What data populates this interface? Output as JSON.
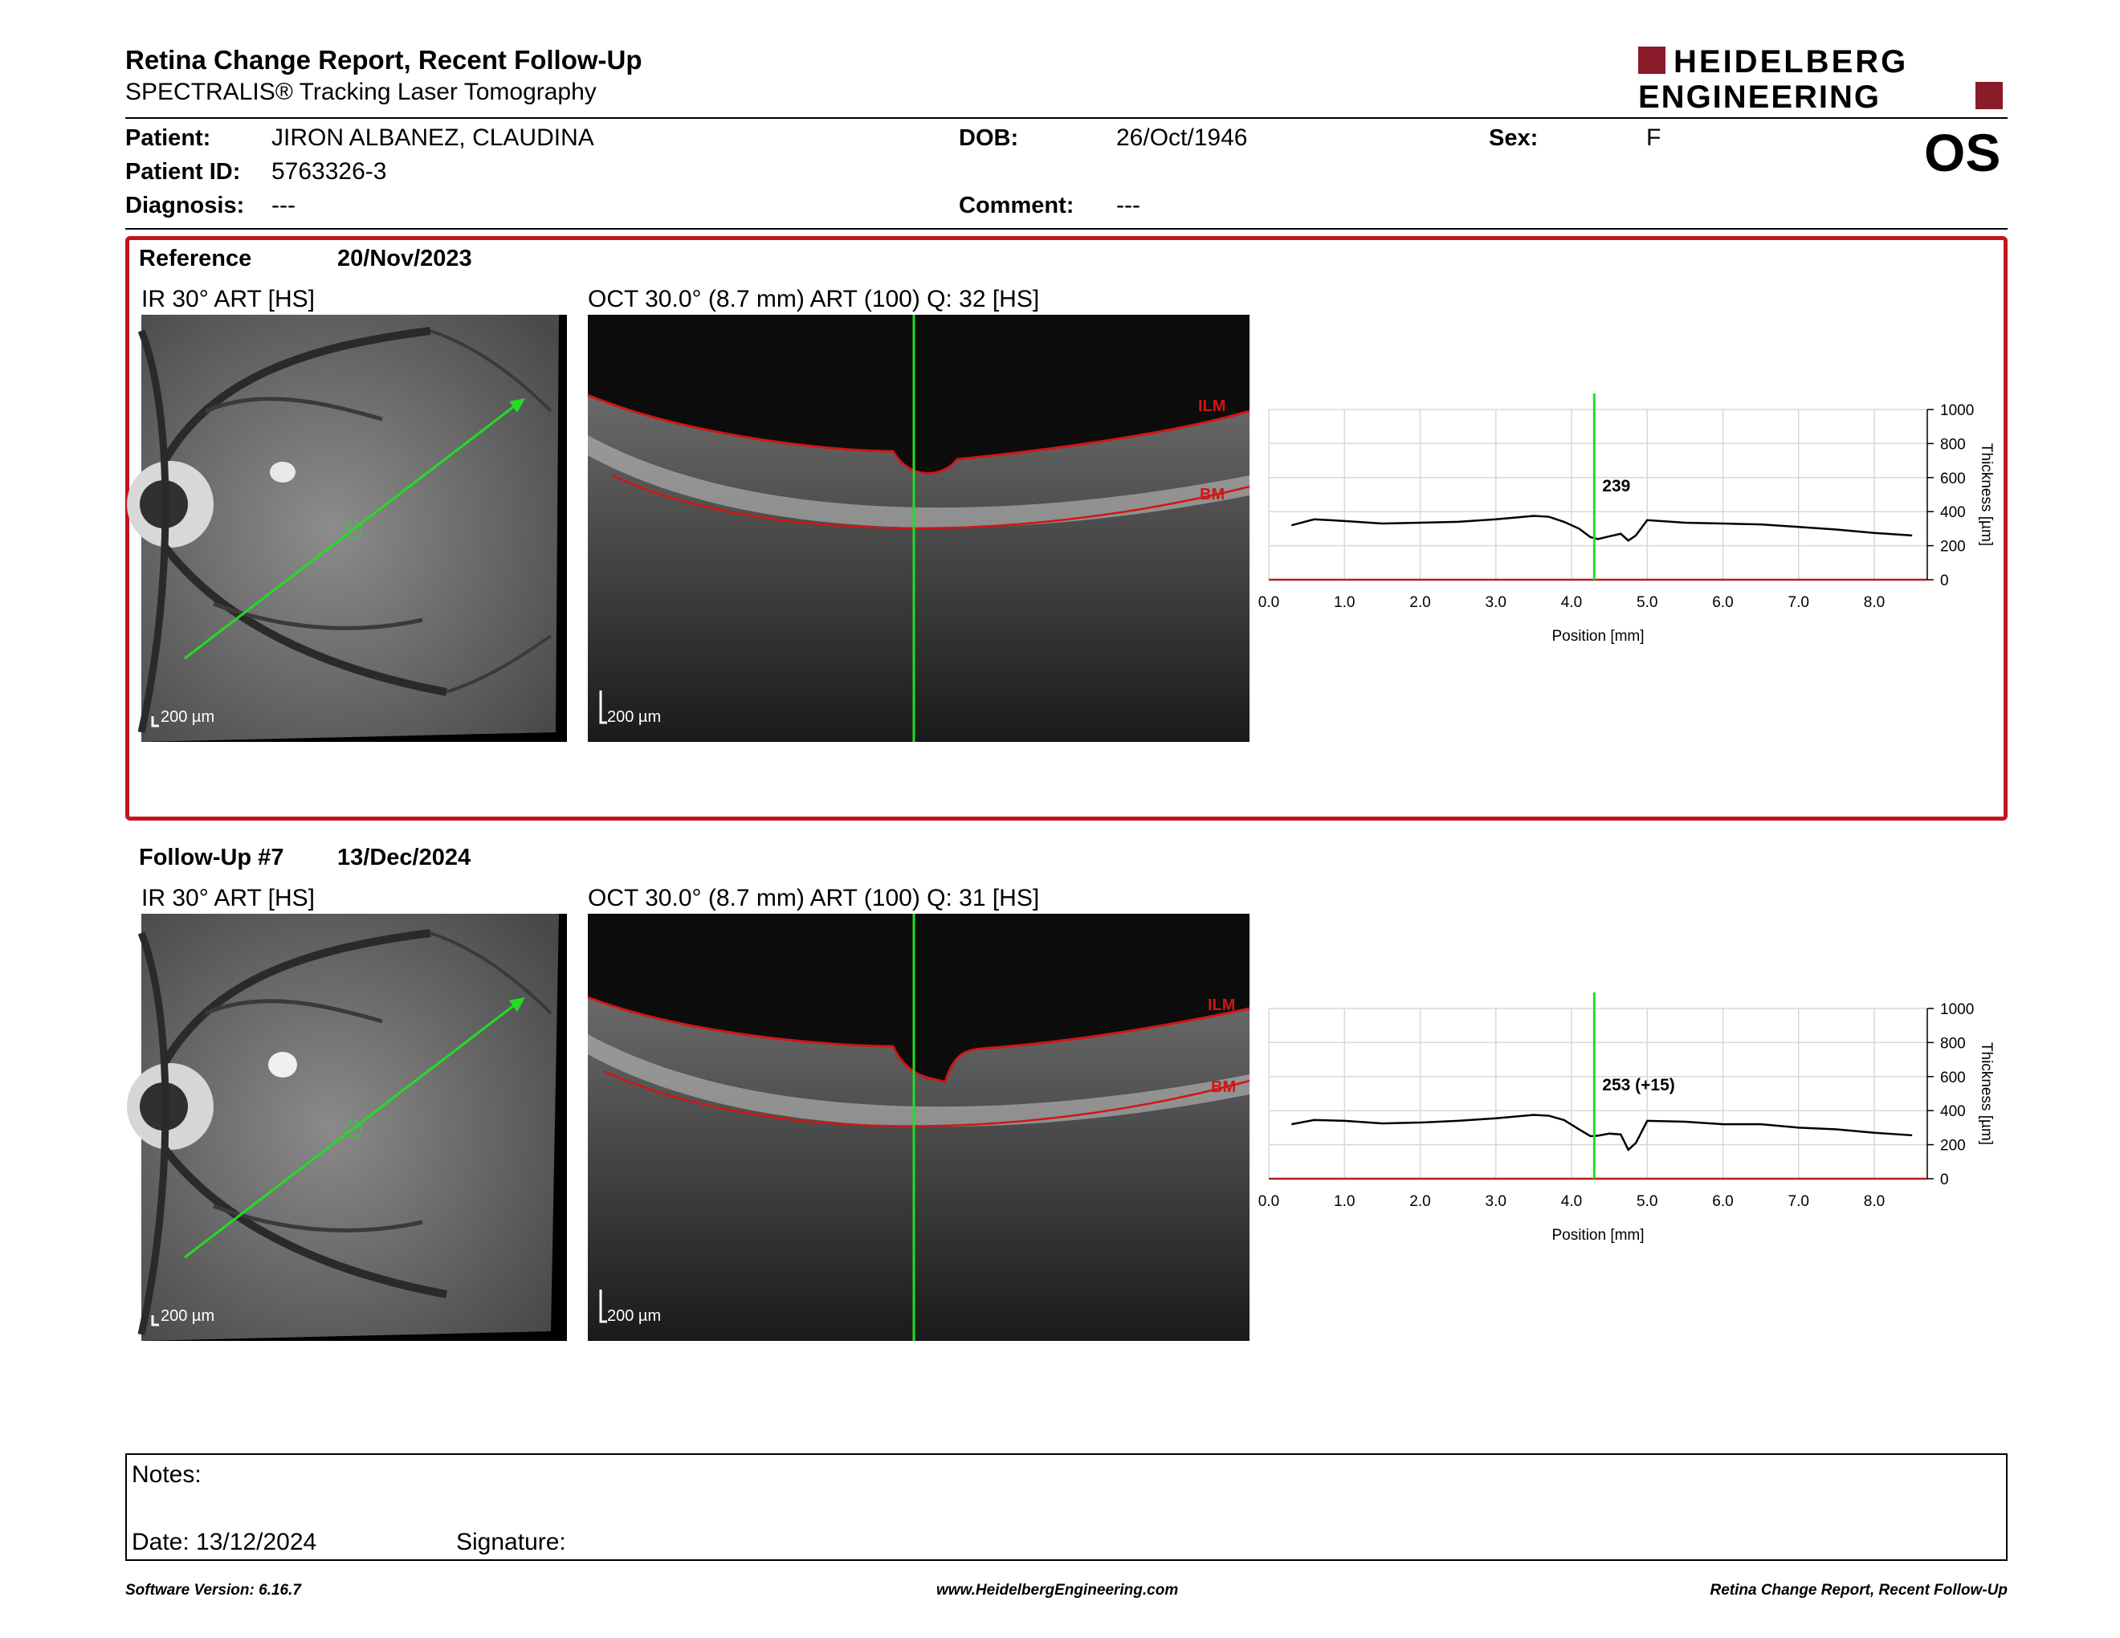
{
  "header": {
    "title": "Retina Change Report, Recent Follow-Up",
    "subtitle": "SPECTRALIS® Tracking Laser Tomography",
    "logo_line1": "HEIDELBERG",
    "logo_line2": "ENGINEERING",
    "eye": "OS"
  },
  "patient": {
    "name_label": "Patient:",
    "name": "JIRON ALBANEZ, CLAUDINA",
    "id_label": "Patient ID:",
    "id": "5763326-3",
    "diag_label": "Diagnosis:",
    "diag": "---",
    "dob_label": "DOB:",
    "dob": "26/Oct/1946",
    "comment_label": "Comment:",
    "comment": "---",
    "sex_label": "Sex:",
    "sex": "F"
  },
  "reference": {
    "label": "Reference",
    "date": "20/Nov/2023",
    "ir_label": "IR 30° ART [HS]",
    "oct_label": "OCT 30.0° (8.7 mm) ART (100) Q: 32 [HS]",
    "scale": "200 µm",
    "ilm": "ILM",
    "bm": "BM",
    "marker_value": "239"
  },
  "followup": {
    "label": "Follow-Up #7",
    "date": "13/Dec/2024",
    "ir_label": "IR 30° ART [HS]",
    "oct_label": "OCT 30.0° (8.7 mm) ART (100) Q: 31 [HS]",
    "scale": "200 µm",
    "ilm": "ILM",
    "bm": "BM",
    "marker_value": "253 (+15)"
  },
  "chart_data": [
    {
      "type": "line",
      "xlabel": "Position [mm]",
      "ylabel": "Thickness [µm]",
      "xlim": [
        0,
        8.7
      ],
      "ylim": [
        0,
        1000
      ],
      "xticks": [
        "0.0",
        "1.0",
        "2.0",
        "3.0",
        "4.0",
        "5.0",
        "6.0",
        "7.0",
        "8.0"
      ],
      "yticks": [
        "0",
        "200",
        "400",
        "600",
        "800",
        "1000"
      ],
      "marker_x": 4.3,
      "grid": true,
      "x": [
        0.3,
        0.6,
        1.0,
        1.5,
        2.0,
        2.5,
        3.0,
        3.5,
        3.7,
        3.9,
        4.1,
        4.25,
        4.35,
        4.5,
        4.65,
        4.75,
        4.85,
        5.0,
        5.5,
        6.0,
        6.5,
        7.0,
        7.5,
        8.0,
        8.5
      ],
      "values": [
        320,
        355,
        345,
        330,
        335,
        340,
        355,
        375,
        370,
        340,
        300,
        250,
        239,
        255,
        270,
        230,
        260,
        350,
        335,
        330,
        325,
        310,
        295,
        275,
        260
      ]
    },
    {
      "type": "line",
      "xlabel": "Position [mm]",
      "ylabel": "Thickness [µm]",
      "xlim": [
        0,
        8.7
      ],
      "ylim": [
        0,
        1000
      ],
      "xticks": [
        "0.0",
        "1.0",
        "2.0",
        "3.0",
        "4.0",
        "5.0",
        "6.0",
        "7.0",
        "8.0"
      ],
      "yticks": [
        "0",
        "200",
        "400",
        "600",
        "800",
        "1000"
      ],
      "marker_x": 4.3,
      "grid": true,
      "x": [
        0.3,
        0.6,
        1.0,
        1.5,
        2.0,
        2.5,
        3.0,
        3.5,
        3.7,
        3.9,
        4.1,
        4.25,
        4.35,
        4.5,
        4.65,
        4.75,
        4.85,
        5.0,
        5.5,
        6.0,
        6.5,
        7.0,
        7.5,
        8.0,
        8.5
      ],
      "values": [
        320,
        345,
        340,
        325,
        330,
        340,
        355,
        375,
        370,
        345,
        290,
        250,
        253,
        265,
        260,
        170,
        210,
        340,
        335,
        320,
        320,
        300,
        290,
        270,
        255
      ]
    }
  ],
  "notes": {
    "label": "Notes:",
    "date_label": "Date: 13/12/2024",
    "signature_label": "Signature:"
  },
  "footer": {
    "left": "Software Version: 6.16.7",
    "center": "www.HeidelbergEngineering.com",
    "right": "Retina Change Report, Recent Follow-Up"
  }
}
